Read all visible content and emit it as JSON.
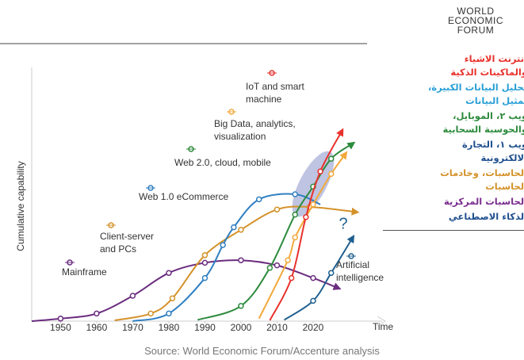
{
  "logo": "WORLD ECONOMIC FORUM",
  "chart_data": {
    "type": "line",
    "y_label": "Cumulative capability",
    "x_label": "Time",
    "xlim": [
      1942,
      2040
    ],
    "xticks": [
      1950,
      1960,
      1970,
      1980,
      1990,
      2000,
      2010,
      2020
    ],
    "ylim": [
      0,
      100
    ],
    "annotation": "?",
    "series": [
      {
        "name": "Mainframe",
        "color": "#6b2d7f",
        "arrow": true,
        "x": [
          1942,
          1950,
          1960,
          1970,
          1980,
          1990,
          2000,
          2010,
          2020,
          2027
        ],
        "values": [
          0,
          1,
          3,
          10,
          19,
          23,
          24,
          22,
          17,
          13
        ]
      },
      {
        "name": "Client-server and PCs",
        "color": "#d4922a",
        "arrow": true,
        "x": [
          1965,
          1975,
          1981,
          1990,
          2000,
          2010,
          2019,
          2032
        ],
        "values": [
          0.3,
          3,
          9,
          26,
          36,
          44,
          45,
          43
        ]
      },
      {
        "name": "Web 1.0 eCommerce",
        "color": "#2f7fc1",
        "arrow": false,
        "x": [
          1970,
          1980,
          1990,
          1995,
          1998,
          2005,
          2015,
          2022
        ],
        "values": [
          0,
          3,
          17,
          30,
          37,
          48,
          50,
          46
        ]
      },
      {
        "name": "Web 2.0, cloud, mobile",
        "color": "#2e8b3e",
        "arrow": true,
        "x": [
          1988,
          2000,
          2008,
          2015,
          2020,
          2025,
          2031
        ],
        "values": [
          0.5,
          6,
          21,
          42,
          53,
          64,
          70
        ]
      },
      {
        "name": "Big Data, analytics, visualization",
        "color": "#f2a93b",
        "arrow": true,
        "x": [
          2005,
          2013,
          2015,
          2020,
          2025,
          2029
        ],
        "values": [
          1,
          24,
          33,
          46,
          58,
          66
        ]
      },
      {
        "name": "IoT and smart machine",
        "color": "#e8322c",
        "arrow": true,
        "x": [
          2008,
          2014,
          2018,
          2022,
          2028
        ],
        "values": [
          0.3,
          17,
          41,
          59,
          75
        ]
      },
      {
        "name": "Artificial intelligence",
        "color": "#1f5f8f",
        "arrow": true,
        "x": [
          2012,
          2020,
          2025,
          2031
        ],
        "values": [
          0.5,
          8,
          19,
          33
        ]
      }
    ]
  },
  "legend_list": [
    {
      "text": "انترنت الاشياء والماكينات الذكية",
      "color": "#e8322c"
    },
    {
      "text": "تحليل البيانات الكبيرة، تمثيل البيانات",
      "color": "#2a9fd6"
    },
    {
      "text": "ويب ٢، الموبايل، والحوسبة السحابية",
      "color": "#2e8b3e"
    },
    {
      "text": "ويب ١، التجارة الالكترونية",
      "color": "#1f4f8f"
    },
    {
      "text": "الحاسبات، وخادمات الحاسبات",
      "color": "#d4922a"
    },
    {
      "text": "الحاسبات المركزية",
      "color": "#7b2d8f"
    },
    {
      "text": "الذكاء الاصطناعي",
      "color": "#1f4f8f"
    }
  ],
  "source": "Source: World Economic Forum/Accenture analysis"
}
